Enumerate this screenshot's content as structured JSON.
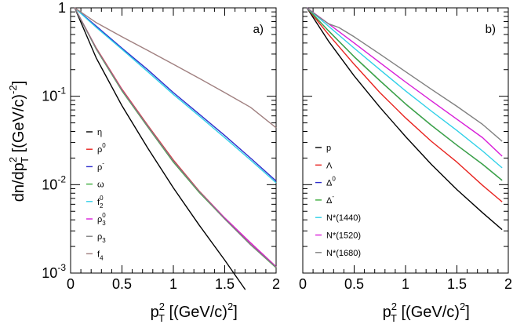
{
  "chart_data": [
    {
      "type": "line",
      "panel_label": "a)",
      "ylabel_base": "dn/dp",
      "ylabel_sup": "2",
      "ylabel_sub": "T",
      "ylabel_unit": " [(GeV/c)",
      "ylabel_unit_sup": "-2",
      "ylabel_close": "]",
      "xlabel_base": "p",
      "xlabel_sup": "2",
      "xlabel_sub": "T",
      "xlabel_unit": " [(GeV/c)",
      "xlabel_unit_sup": "2",
      "xlabel_close": "]",
      "xlim": [
        0,
        2
      ],
      "ylim": [
        0.001,
        1
      ],
      "yscale": "log",
      "x_ticks": [
        "0",
        "0.5",
        "1",
        "1.5",
        "2"
      ],
      "y_ticks": [
        {
          "base": "1",
          "exp": ""
        },
        {
          "base": "10",
          "exp": "-1"
        },
        {
          "base": "10",
          "exp": "-2"
        },
        {
          "base": "10",
          "exp": "-3"
        }
      ],
      "legend_position": "left-center",
      "series": [
        {
          "name": "η",
          "sup": "",
          "sub": "",
          "color": "#000000",
          "x": [
            0.04,
            0.25,
            0.5,
            0.75,
            1.0,
            1.25,
            1.5,
            1.7
          ],
          "y": [
            1.0,
            0.27,
            0.078,
            0.026,
            0.0092,
            0.0035,
            0.0014,
            0.00065
          ]
        },
        {
          "name": "ρ",
          "sup": "0",
          "sub": "",
          "color": "#e8231f",
          "x": [
            0.04,
            0.25,
            0.5,
            0.75,
            1.0,
            1.25,
            1.5,
            1.75,
            2.0
          ],
          "y": [
            1.0,
            0.35,
            0.12,
            0.047,
            0.019,
            0.0085,
            0.0042,
            0.0022,
            0.00118
          ]
        },
        {
          "name": "ρ",
          "sup": "-",
          "sub": "",
          "color": "#2d2dcc",
          "x": [
            0.04,
            0.25,
            0.5,
            0.75,
            1.0,
            1.25,
            1.5,
            1.75,
            2.0
          ],
          "y": [
            1.0,
            0.62,
            0.35,
            0.2,
            0.11,
            0.063,
            0.036,
            0.02,
            0.011
          ]
        },
        {
          "name": "ω",
          "sup": "",
          "sub": "",
          "color": "#3cab3c",
          "x": [
            0.04,
            0.25,
            0.5,
            0.75,
            1.0,
            1.25,
            1.5,
            1.75,
            2.0
          ],
          "y": [
            1.0,
            0.34,
            0.115,
            0.045,
            0.018,
            0.0082,
            0.0041,
            0.0021,
            0.00115
          ]
        },
        {
          "name": "f",
          "sup": "0",
          "sub": "2",
          "color": "#30d0e8",
          "x": [
            0.04,
            0.25,
            0.5,
            0.75,
            1.0,
            1.25,
            1.5,
            1.75,
            2.0
          ],
          "y": [
            1.0,
            0.6,
            0.34,
            0.19,
            0.105,
            0.06,
            0.034,
            0.019,
            0.0105
          ]
        },
        {
          "name": "ρ",
          "sup": "0",
          "sub": "3",
          "color": "#d81ed8",
          "x": [
            0.04,
            0.25,
            0.5,
            0.75,
            1.0,
            1.25,
            1.5,
            1.75,
            2.0
          ],
          "y": [
            1.0,
            0.345,
            0.118,
            0.046,
            0.0185,
            0.0084,
            0.0042,
            0.0022,
            0.00118
          ]
        },
        {
          "name": "ρ",
          "sup": "",
          "sub": "3",
          "color": "#808080",
          "x": [
            0.04,
            0.25,
            0.5,
            0.75,
            1.0,
            1.25,
            1.5,
            1.75,
            2.0
          ],
          "y": [
            1.0,
            0.345,
            0.117,
            0.046,
            0.0185,
            0.0084,
            0.0041,
            0.0021,
            0.00116
          ]
        },
        {
          "name": "f",
          "sup": "",
          "sub": "4",
          "color": "#a08080",
          "x": [
            0.04,
            0.25,
            0.5,
            0.75,
            1.0,
            1.25,
            1.5,
            1.75,
            2.0
          ],
          "y": [
            1.0,
            0.68,
            0.47,
            0.33,
            0.23,
            0.16,
            0.11,
            0.075,
            0.044
          ]
        }
      ]
    },
    {
      "type": "line",
      "panel_label": "b)",
      "xlabel_base": "p",
      "xlabel_sup": "2",
      "xlabel_sub": "T",
      "xlabel_unit": " [(GeV/c)",
      "xlabel_unit_sup": "2",
      "xlabel_close": "]",
      "xlim": [
        0,
        2
      ],
      "ylim": [
        0.001,
        1
      ],
      "yscale": "log",
      "x_ticks": [
        "0",
        "0.5",
        "1",
        "1.5",
        "2"
      ],
      "legend_position": "left-center",
      "series": [
        {
          "name": "p",
          "sup": "",
          "sub": "",
          "color": "#000000",
          "x": [
            0.04,
            0.25,
            0.5,
            0.75,
            1.0,
            1.25,
            1.5,
            1.75,
            1.94
          ],
          "y": [
            1.0,
            0.42,
            0.17,
            0.075,
            0.035,
            0.017,
            0.0088,
            0.0048,
            0.0031
          ]
        },
        {
          "name": "Λ",
          "sup": "",
          "sub": "",
          "color": "#e8231f",
          "x": [
            0.04,
            0.25,
            0.5,
            0.75,
            1.0,
            1.25,
            1.5,
            1.75,
            1.94
          ],
          "y": [
            1.0,
            0.5,
            0.23,
            0.11,
            0.057,
            0.031,
            0.018,
            0.0098,
            0.0064
          ]
        },
        {
          "name": "Δ",
          "sup": "0",
          "sub": "",
          "color": "#2d2dcc",
          "x": [
            0.04,
            0.25,
            0.5,
            0.75,
            1.0,
            1.25,
            1.5,
            1.75,
            1.94
          ],
          "y": [
            1.0,
            0.55,
            0.28,
            0.15,
            0.082,
            0.047,
            0.028,
            0.017,
            0.0112
          ]
        },
        {
          "name": "Δ",
          "sup": "-",
          "sub": "",
          "color": "#3cab3c",
          "x": [
            0.04,
            0.25,
            0.5,
            0.75,
            1.0,
            1.25,
            1.5,
            1.75,
            1.94
          ],
          "y": [
            1.0,
            0.55,
            0.28,
            0.15,
            0.082,
            0.047,
            0.028,
            0.017,
            0.0112
          ]
        },
        {
          "name": "N*(1440)",
          "sup": "",
          "sub": "",
          "color": "#30d0e8",
          "x": [
            0.04,
            0.25,
            0.5,
            0.75,
            1.0,
            1.25,
            1.5,
            1.75,
            1.94
          ],
          "y": [
            1.0,
            0.62,
            0.35,
            0.2,
            0.115,
            0.068,
            0.041,
            0.024,
            0.0155
          ]
        },
        {
          "name": "N*(1520)",
          "sup": "",
          "sub": "",
          "color": "#d81ed8",
          "x": [
            0.04,
            0.25,
            0.5,
            0.75,
            1.0,
            1.25,
            1.5,
            1.75,
            1.94
          ],
          "y": [
            1.0,
            0.66,
            0.4,
            0.24,
            0.145,
            0.089,
            0.055,
            0.034,
            0.021
          ]
        },
        {
          "name": "N*(1680)",
          "sup": "",
          "sub": "",
          "color": "#808080",
          "x": [
            0.04,
            0.15,
            0.25,
            0.35,
            0.5,
            0.75,
            1.0,
            1.25,
            1.5,
            1.75,
            1.94
          ],
          "y": [
            1.0,
            0.8,
            0.66,
            0.6,
            0.47,
            0.3,
            0.19,
            0.12,
            0.077,
            0.048,
            0.031
          ]
        }
      ]
    }
  ]
}
